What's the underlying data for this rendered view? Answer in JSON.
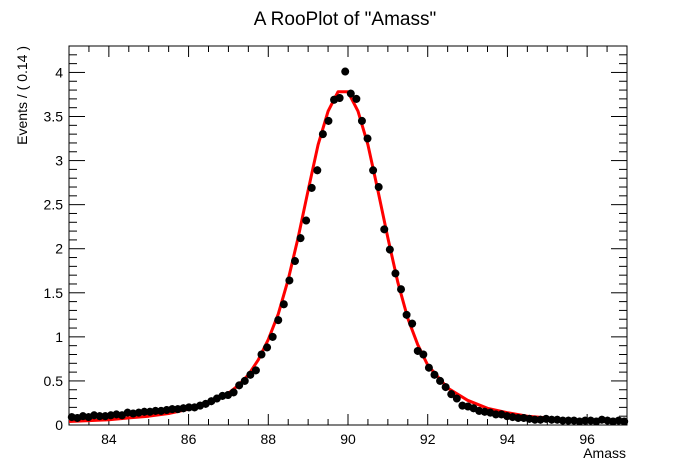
{
  "chart_data": {
    "type": "scatter",
    "title": "A RooPlot of \"Amass\"",
    "xlabel": "Amass",
    "ylabel": "Events / ( 0.14 )",
    "xlim": [
      83,
      97
    ],
    "ylim": [
      0,
      4.3
    ],
    "x_ticks": [
      84,
      86,
      88,
      90,
      92,
      94,
      96
    ],
    "x_tick_labels": [
      "84",
      "86",
      "88",
      "90",
      "92",
      "94",
      "96"
    ],
    "y_ticks": [
      0,
      0.5,
      1,
      1.5,
      2,
      2.5,
      3,
      3.5,
      4
    ],
    "y_tick_labels": [
      "0",
      "0.5",
      "1",
      "1.5",
      "2",
      "2.5",
      "3",
      "3.5",
      "4"
    ],
    "grid": false,
    "series": [
      {
        "kind": "points-with-error-bars",
        "color": "#000000",
        "error": 0.045,
        "x": [
          83.07,
          83.21,
          83.35,
          83.49,
          83.63,
          83.77,
          83.91,
          84.05,
          84.19,
          84.33,
          84.47,
          84.61,
          84.75,
          84.89,
          85.03,
          85.17,
          85.31,
          85.45,
          85.59,
          85.73,
          85.87,
          86.01,
          86.15,
          86.29,
          86.43,
          86.57,
          86.71,
          86.85,
          86.99,
          87.13,
          87.27,
          87.41,
          87.55,
          87.69,
          87.83,
          87.97,
          88.11,
          88.25,
          88.39,
          88.53,
          88.67,
          88.81,
          88.95,
          89.09,
          89.23,
          89.37,
          89.51,
          89.65,
          89.79,
          89.93,
          90.07,
          90.21,
          90.35,
          90.49,
          90.63,
          90.77,
          90.91,
          91.05,
          91.19,
          91.33,
          91.47,
          91.61,
          91.75,
          91.89,
          92.03,
          92.17,
          92.31,
          92.45,
          92.59,
          92.73,
          92.87,
          93.01,
          93.15,
          93.29,
          93.43,
          93.57,
          93.71,
          93.85,
          93.99,
          94.13,
          94.27,
          94.41,
          94.55,
          94.69,
          94.83,
          94.97,
          95.11,
          95.25,
          95.39,
          95.53,
          95.67,
          95.81,
          95.95,
          96.09,
          96.23,
          96.37,
          96.51,
          96.65,
          96.79,
          96.93
        ],
        "y": [
          0.09,
          0.08,
          0.1,
          0.09,
          0.11,
          0.1,
          0.1,
          0.11,
          0.12,
          0.11,
          0.14,
          0.13,
          0.14,
          0.15,
          0.15,
          0.16,
          0.16,
          0.17,
          0.18,
          0.18,
          0.19,
          0.2,
          0.2,
          0.22,
          0.24,
          0.27,
          0.3,
          0.33,
          0.34,
          0.37,
          0.45,
          0.5,
          0.57,
          0.62,
          0.8,
          0.88,
          1.0,
          1.19,
          1.37,
          1.64,
          1.86,
          2.12,
          2.32,
          2.69,
          2.89,
          3.3,
          3.45,
          3.69,
          3.71,
          4.01,
          3.76,
          3.7,
          3.45,
          3.25,
          2.89,
          2.7,
          2.22,
          1.99,
          1.72,
          1.54,
          1.25,
          1.15,
          0.84,
          0.8,
          0.65,
          0.57,
          0.5,
          0.43,
          0.35,
          0.3,
          0.22,
          0.21,
          0.19,
          0.16,
          0.15,
          0.14,
          0.12,
          0.12,
          0.1,
          0.09,
          0.08,
          0.08,
          0.07,
          0.06,
          0.06,
          0.07,
          0.06,
          0.06,
          0.05,
          0.05,
          0.05,
          0.04,
          0.05,
          0.05,
          0.04,
          0.06,
          0.05,
          0.04,
          0.05,
          0.04
        ]
      },
      {
        "kind": "fit-curve",
        "color": "#ff0000",
        "x": [
          83.0,
          83.5,
          84.0,
          84.5,
          85.0,
          85.5,
          86.0,
          86.5,
          87.0,
          87.25,
          87.5,
          87.75,
          88.0,
          88.25,
          88.5,
          88.75,
          89.0,
          89.25,
          89.5,
          89.75,
          90.0,
          90.25,
          90.5,
          90.75,
          91.0,
          91.25,
          91.5,
          91.75,
          92.0,
          92.5,
          93.0,
          93.5,
          94.0,
          94.5,
          95.0,
          95.5,
          96.0,
          96.5,
          97.0
        ],
        "y": [
          0.04,
          0.05,
          0.06,
          0.08,
          0.1,
          0.13,
          0.18,
          0.25,
          0.36,
          0.45,
          0.57,
          0.74,
          0.97,
          1.26,
          1.65,
          2.13,
          2.66,
          3.18,
          3.56,
          3.78,
          3.78,
          3.56,
          3.18,
          2.66,
          2.12,
          1.62,
          1.21,
          0.91,
          0.68,
          0.42,
          0.28,
          0.19,
          0.14,
          0.1,
          0.08,
          0.06,
          0.05,
          0.04,
          0.04
        ]
      }
    ]
  }
}
